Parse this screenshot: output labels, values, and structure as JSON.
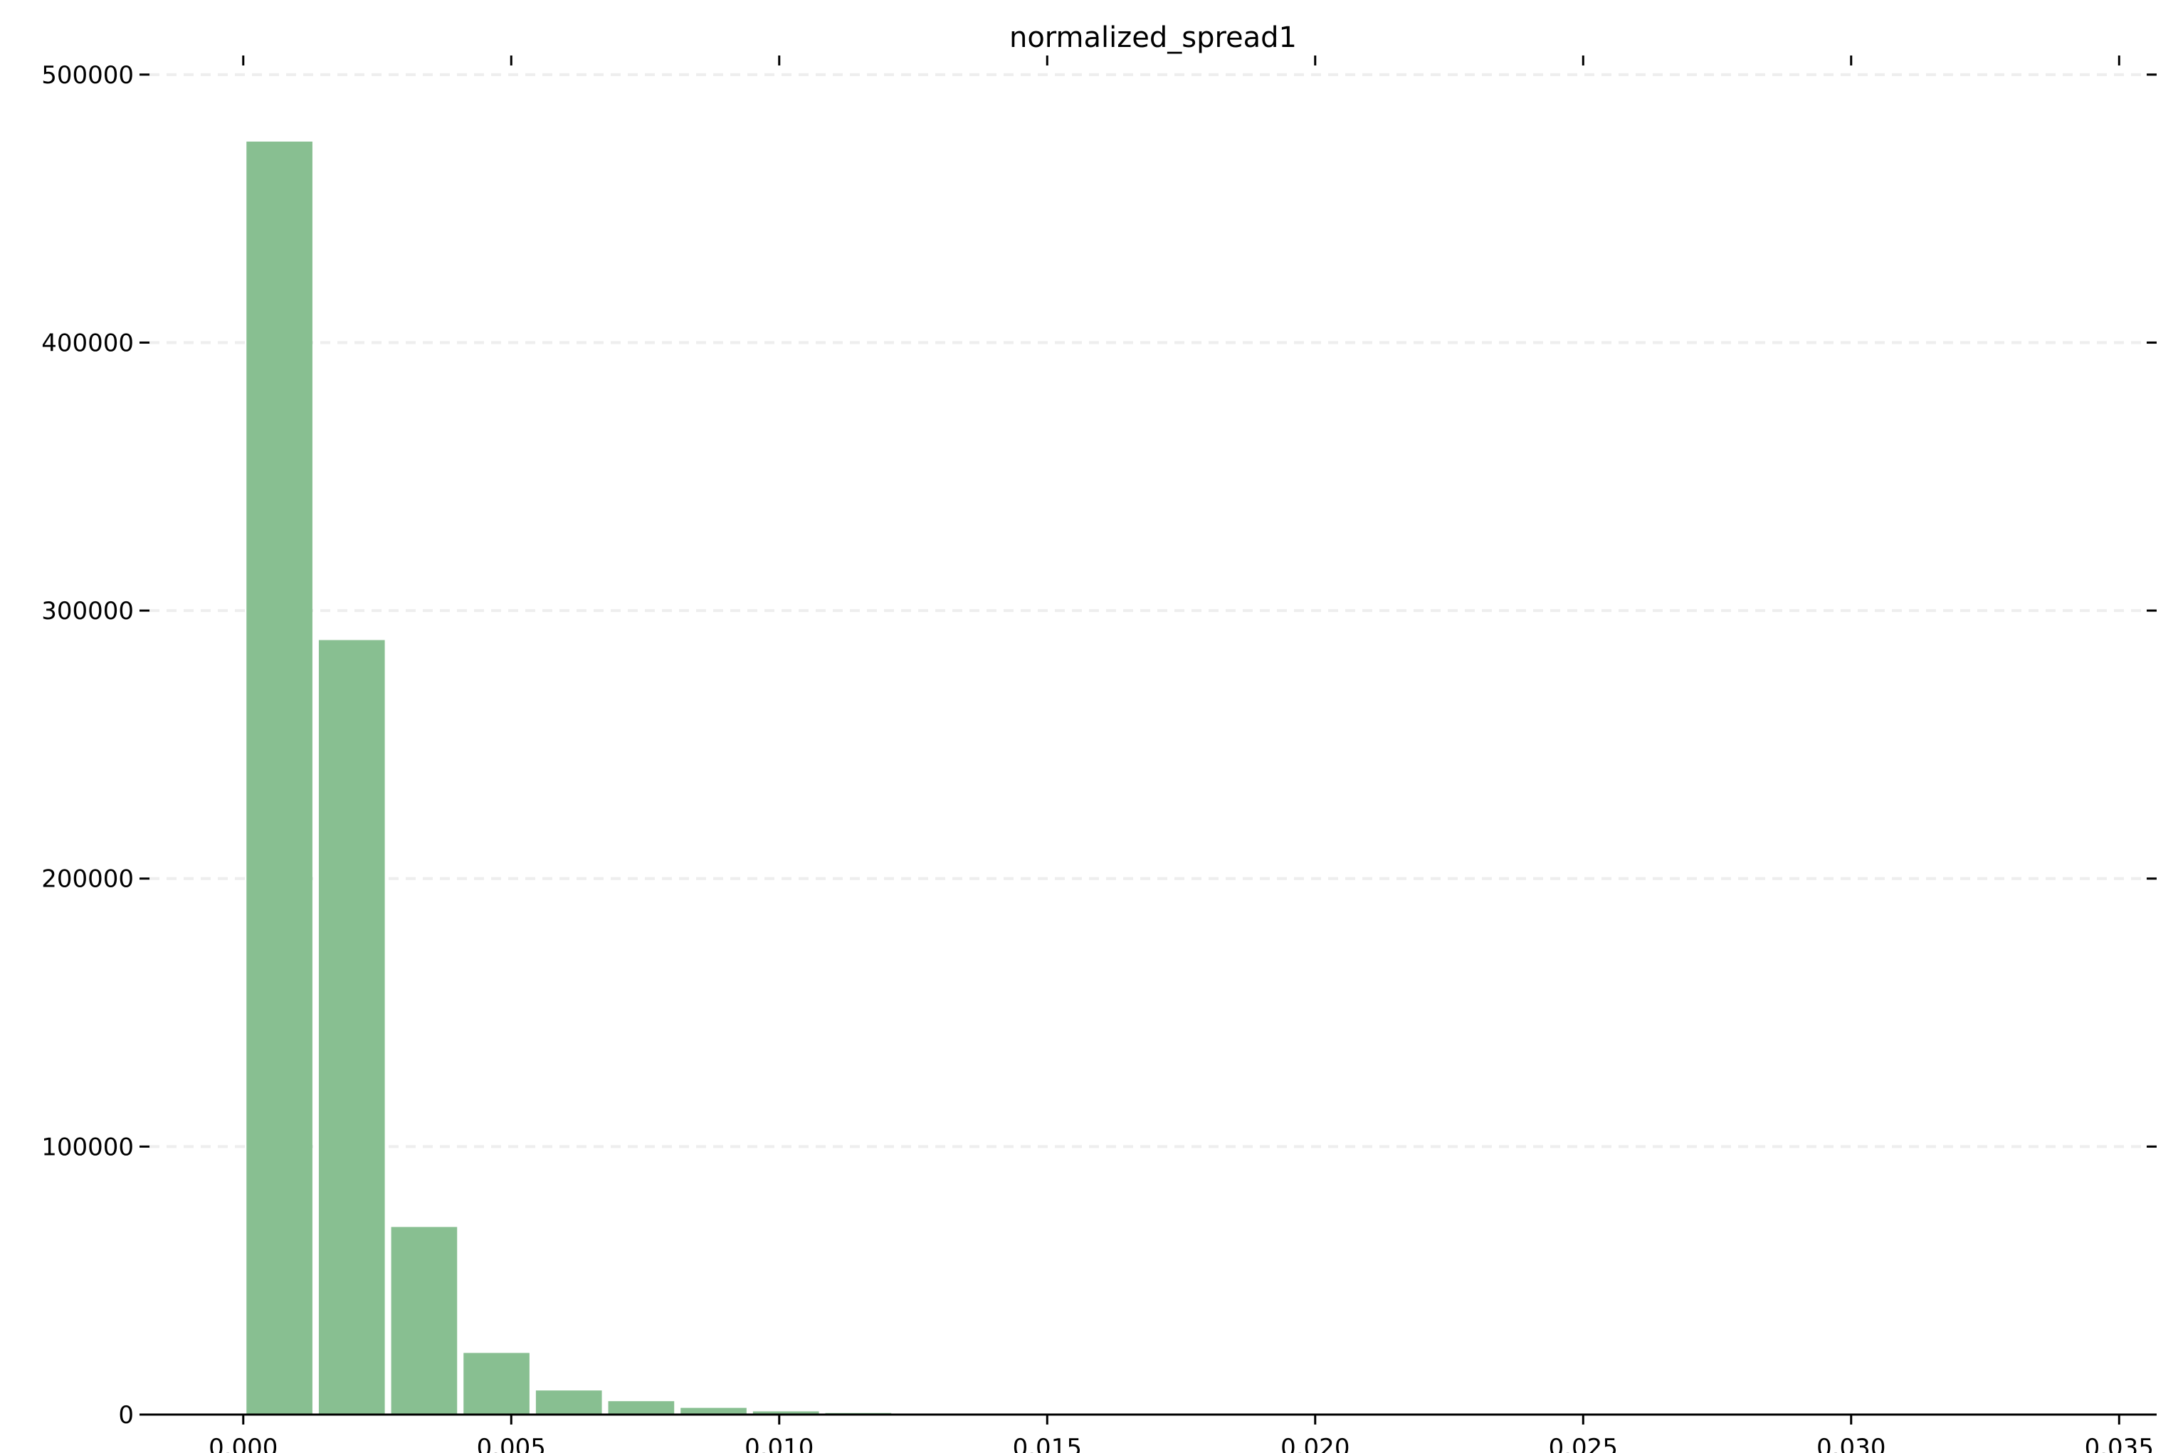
{
  "chart_data": {
    "type": "bar",
    "title": "normalized_spread1",
    "xlabel": "",
    "ylabel": "",
    "xlim": [
      -0.00175,
      0.0357
    ],
    "ylim": [
      0,
      505000
    ],
    "bar_color": "#88bf91",
    "grid": true,
    "grid_axis": "y",
    "bins": [
      {
        "x0": 0.0,
        "x1": 0.00135,
        "count": 475000
      },
      {
        "x0": 0.00135,
        "x1": 0.0027,
        "count": 289000
      },
      {
        "x0": 0.0027,
        "x1": 0.00405,
        "count": 70000
      },
      {
        "x0": 0.00405,
        "x1": 0.0054,
        "count": 23000
      },
      {
        "x0": 0.0054,
        "x1": 0.00675,
        "count": 9000
      },
      {
        "x0": 0.00675,
        "x1": 0.0081,
        "count": 5000
      },
      {
        "x0": 0.0081,
        "x1": 0.00945,
        "count": 2500
      },
      {
        "x0": 0.00945,
        "x1": 0.0108,
        "count": 1200
      },
      {
        "x0": 0.0108,
        "x1": 0.01215,
        "count": 600
      },
      {
        "x0": 0.01215,
        "x1": 0.0135,
        "count": 300
      },
      {
        "x0": 0.0135,
        "x1": 0.01485,
        "count": 150
      },
      {
        "x0": 0.01485,
        "x1": 0.0162,
        "count": 80
      },
      {
        "x0": 0.0162,
        "x1": 0.01755,
        "count": 40
      },
      {
        "x0": 0.01755,
        "x1": 0.0189,
        "count": 20
      }
    ],
    "x_ticks": [
      {
        "value": 0.0,
        "label": "0.000"
      },
      {
        "value": 0.005,
        "label": "0.005"
      },
      {
        "value": 0.01,
        "label": "0.010"
      },
      {
        "value": 0.015,
        "label": "0.015"
      },
      {
        "value": 0.02,
        "label": "0.020"
      },
      {
        "value": 0.025,
        "label": "0.025"
      },
      {
        "value": 0.03,
        "label": "0.030"
      },
      {
        "value": 0.035,
        "label": "0.035"
      }
    ],
    "y_ticks": [
      {
        "value": 0,
        "label": "0"
      },
      {
        "value": 100000,
        "label": "100000"
      },
      {
        "value": 200000,
        "label": "200000"
      },
      {
        "value": 300000,
        "label": "300000"
      },
      {
        "value": 400000,
        "label": "400000"
      },
      {
        "value": 500000,
        "label": "500000"
      }
    ]
  }
}
